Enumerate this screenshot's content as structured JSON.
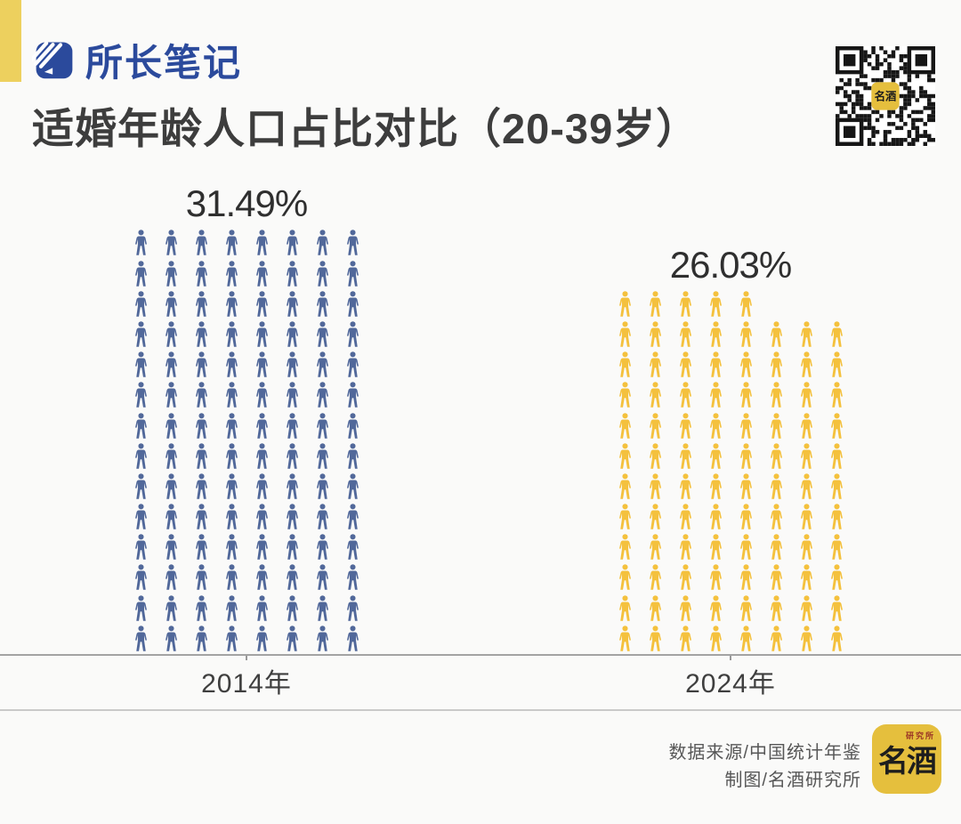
{
  "header": {
    "brand": {
      "name": "所长笔记",
      "color": "#2B4A9C"
    },
    "title": "适婚年龄人口占比对比（20-39岁）"
  },
  "accent": {
    "bar_color": "#EDD05E"
  },
  "chart_data": {
    "type": "pictograph-bar",
    "title": "适婚年龄人口占比对比（20-39岁）",
    "unit_icon": "person-icon",
    "categories": [
      "2014年",
      "2024年"
    ],
    "values": [
      31.49,
      26.03
    ],
    "series": [
      {
        "category": "2014年",
        "value": 31.49,
        "label": "31.49%",
        "color": "#51689A",
        "icon_count": 112,
        "columns": 8,
        "top_row_icons": 8
      },
      {
        "category": "2024年",
        "value": 26.03,
        "label": "26.03%",
        "color": "#F4C13D",
        "icon_count": 93,
        "columns": 8,
        "top_row_icons": 5
      }
    ],
    "legend": false,
    "grid": false,
    "xlabel": "",
    "ylabel": ""
  },
  "footer": {
    "source": "数据来源/中国统计年鉴",
    "credit": "制图/名酒研究所",
    "logo": {
      "text": "名酒",
      "sub": "研究所",
      "bg": "#E5BF3D"
    }
  }
}
